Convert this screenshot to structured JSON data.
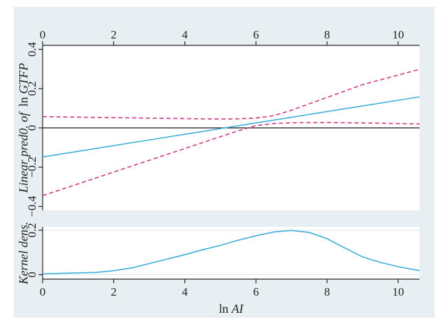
{
  "chart_data": [
    {
      "type": "line",
      "panel": "top",
      "xlim": [
        0,
        10.6
      ],
      "ylim": [
        -0.42,
        0.42
      ],
      "xticks": [
        0,
        2,
        4,
        6,
        8,
        10
      ],
      "yticks": [
        -0.4,
        -0.2,
        0,
        0.2,
        0.4
      ],
      "xtick_labels": [
        "0",
        "2",
        "4",
        "6",
        "8",
        "10"
      ],
      "ytick_labels": [
        "−0.4",
        "−0.2",
        "0",
        "0.2",
        "0.4"
      ],
      "xaxis_position": "top",
      "ylabel": "Linear pred0. of lnGTFP",
      "ylabel_parts": [
        "Linear pred0. of",
        "ln",
        "GTFP"
      ],
      "zero_line": true,
      "grid": false,
      "series": [
        {
          "color": "#3aaed8",
          "dash": "solid",
          "x": [
            0,
            10.6
          ],
          "y": [
            -0.148,
            0.158
          ]
        },
        {
          "color": "#d3357f",
          "dash": "dashed",
          "x": [
            0,
            2,
            4,
            5,
            5.5,
            6,
            6.5,
            7,
            8,
            9,
            10.6
          ],
          "y": [
            -0.345,
            -0.225,
            -0.105,
            -0.045,
            -0.015,
            0.012,
            0.022,
            0.026,
            0.027,
            0.025,
            0.02
          ]
        },
        {
          "color": "#d3357f",
          "dash": "dashed",
          "x": [
            0,
            2,
            4,
            5,
            5.5,
            6,
            6.5,
            7,
            8,
            9,
            10.6
          ],
          "y": [
            0.057,
            0.052,
            0.047,
            0.045,
            0.046,
            0.05,
            0.062,
            0.09,
            0.155,
            0.22,
            0.298
          ]
        }
      ]
    },
    {
      "type": "line",
      "panel": "bottom",
      "xlim": [
        0,
        10.6
      ],
      "ylim": [
        -0.02,
        0.215
      ],
      "xticks": [
        0,
        2,
        4,
        6,
        8,
        10
      ],
      "yticks": [
        0,
        0.2
      ],
      "xtick_labels": [
        "0",
        "2",
        "4",
        "6",
        "8",
        "10"
      ],
      "ytick_labels": [
        "0",
        "0.2"
      ],
      "xlabel": "lnAI",
      "xlabel_parts": [
        "ln",
        "AI"
      ],
      "ylabel": "Kernel dens.",
      "grid": true,
      "series": [
        {
          "color": "#3aaed8",
          "dash": "solid",
          "x": [
            0,
            0.5,
            1,
            1.5,
            2,
            2.5,
            3,
            3.5,
            4,
            4.5,
            5,
            5.5,
            6,
            6.5,
            7,
            7.5,
            8,
            8.5,
            9,
            9.5,
            10,
            10.6
          ],
          "y": [
            0.004,
            0.006,
            0.008,
            0.01,
            0.018,
            0.03,
            0.05,
            0.07,
            0.09,
            0.112,
            0.132,
            0.155,
            0.175,
            0.192,
            0.199,
            0.19,
            0.162,
            0.12,
            0.08,
            0.055,
            0.036,
            0.018
          ]
        }
      ]
    }
  ]
}
